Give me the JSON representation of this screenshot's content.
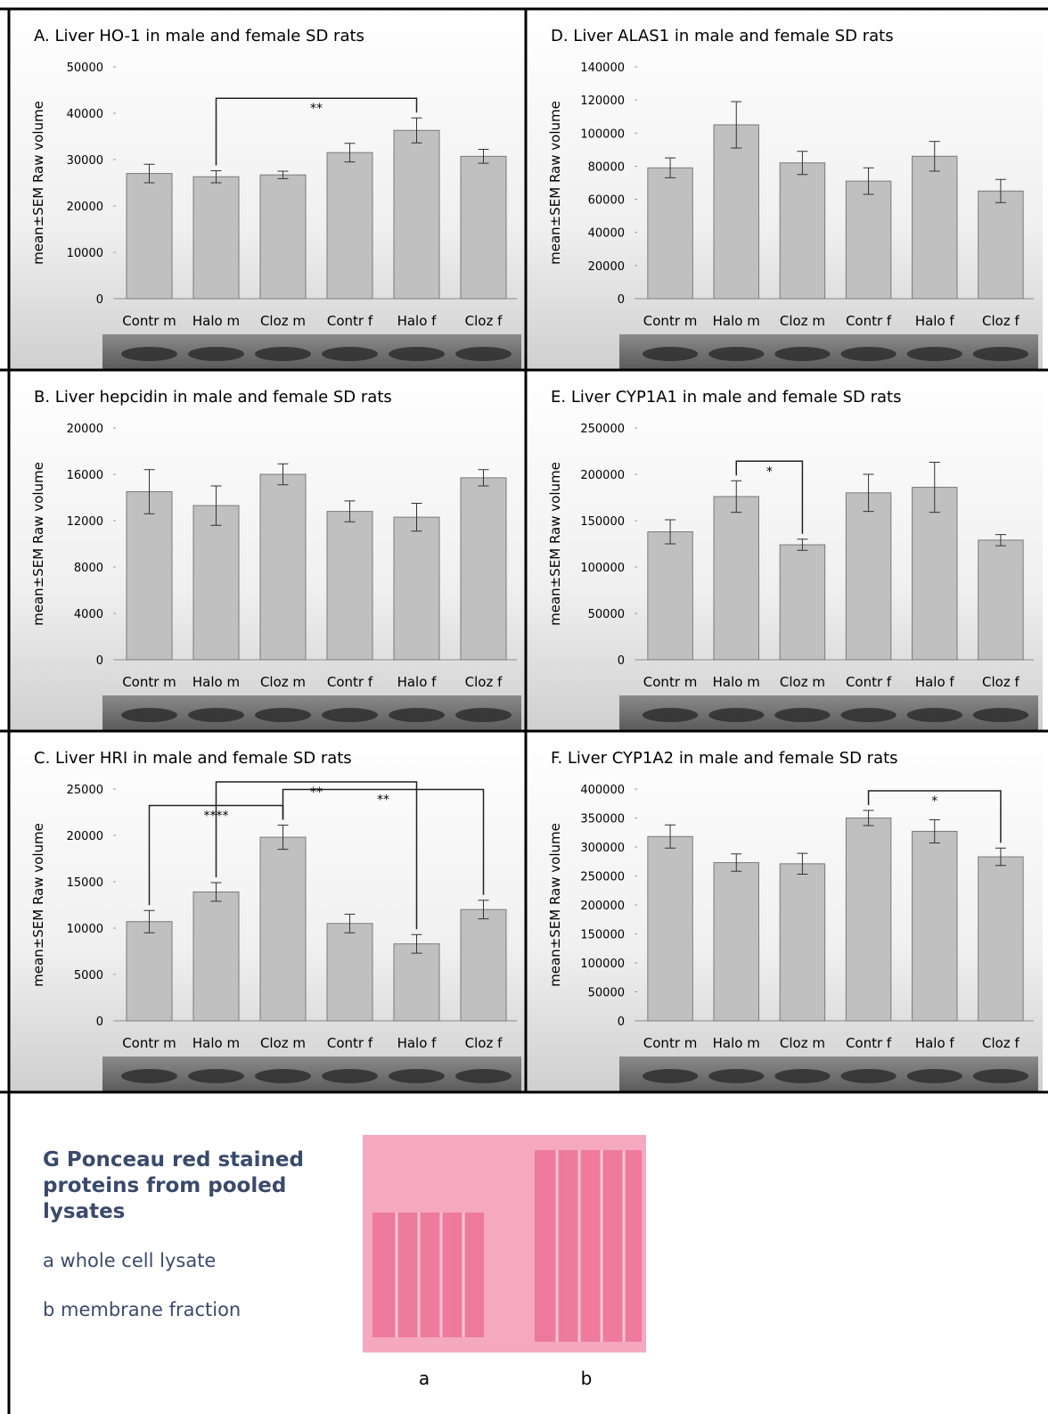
{
  "chart_data": [
    {
      "type": "bar",
      "title": "A. Liver HO-1 in male and female SD rats",
      "ylabel": "mean±SEM Raw volume",
      "categories": [
        "Contr m",
        "Halo m",
        "Cloz m",
        "Contr f",
        "Halo f",
        "Cloz f"
      ],
      "values": [
        27000,
        26300,
        26700,
        31500,
        36300,
        30700
      ],
      "errors": [
        2000,
        1300,
        800,
        2000,
        2700,
        1500
      ],
      "color": "#c0c0c0",
      "ylim": [
        0,
        50000
      ],
      "yticks": [
        0,
        10000,
        20000,
        30000,
        40000,
        50000
      ],
      "brackets": [
        {
          "pair": [
            1,
            4
          ],
          "label": "**"
        }
      ]
    },
    {
      "type": "bar",
      "title": "B. Liver hepcidin in male and female SD rats",
      "ylabel": "mean±SEM Raw volume",
      "categories": [
        "Contr m",
        "Halo m",
        "Cloz m",
        "Contr f",
        "Halo f",
        "Cloz f"
      ],
      "values": [
        14500,
        13300,
        16000,
        12800,
        12300,
        15700
      ],
      "errors": [
        1900,
        1700,
        900,
        900,
        1200,
        700
      ],
      "color": "#c0c0c0",
      "ylim": [
        0,
        20000
      ],
      "yticks": [
        0,
        4000,
        8000,
        12000,
        16000,
        20000
      ],
      "brackets": []
    },
    {
      "type": "bar",
      "title": "C. Liver HRI in male and female SD rats",
      "ylabel": "mean±SEM Raw volume",
      "categories": [
        "Contr m",
        "Halo m",
        "Cloz m",
        "Contr f",
        "Halo f",
        "Cloz f"
      ],
      "values": [
        10700,
        13900,
        19800,
        10500,
        8300,
        12000
      ],
      "errors": [
        1200,
        1000,
        1300,
        1000,
        1000,
        1000
      ],
      "color": "#c0c0c0",
      "ylim": [
        0,
        25000
      ],
      "yticks": [
        0,
        5000,
        10000,
        15000,
        20000,
        25000
      ],
      "brackets": [
        {
          "pair": [
            0,
            2
          ],
          "label": "****"
        },
        {
          "pair": [
            2,
            5
          ],
          "label": "**"
        },
        {
          "pair": [
            1,
            4
          ],
          "label": "**"
        }
      ]
    },
    {
      "type": "bar",
      "title": "D. Liver ALAS1 in male and female SD rats",
      "ylabel": "mean±SEM Raw volume",
      "categories": [
        "Contr m",
        "Halo m",
        "Cloz m",
        "Contr f",
        "Halo f",
        "Cloz f"
      ],
      "values": [
        79000,
        105000,
        82000,
        71000,
        86000,
        65000
      ],
      "errors": [
        6000,
        14000,
        7000,
        8000,
        9000,
        7000
      ],
      "color": "#c0c0c0",
      "ylim": [
        0,
        140000
      ],
      "yticks": [
        0,
        20000,
        40000,
        60000,
        80000,
        100000,
        120000,
        140000
      ],
      "brackets": []
    },
    {
      "type": "bar",
      "title": "E. Liver CYP1A1 in male and female SD rats",
      "ylabel": "mean±SEM Raw volume",
      "categories": [
        "Contr m",
        "Halo m",
        "Cloz m",
        "Contr f",
        "Halo f",
        "Cloz f"
      ],
      "values": [
        138000,
        176000,
        124000,
        180000,
        186000,
        129000
      ],
      "errors": [
        13000,
        17000,
        6000,
        20000,
        27000,
        6000
      ],
      "color": "#c0c0c0",
      "ylim": [
        0,
        250000
      ],
      "yticks": [
        0,
        50000,
        100000,
        150000,
        200000,
        250000
      ],
      "brackets": [
        {
          "pair": [
            1,
            2
          ],
          "label": "*"
        }
      ]
    },
    {
      "type": "bar",
      "title": "F. Liver CYP1A2 in male and female SD rats",
      "ylabel": "mean±SEM Raw volume",
      "categories": [
        "Contr m",
        "Halo m",
        "Cloz m",
        "Contr f",
        "Halo f",
        "Cloz f"
      ],
      "values": [
        318000,
        273000,
        271000,
        350000,
        327000,
        283000
      ],
      "errors": [
        20000,
        15000,
        18000,
        13000,
        20000,
        15000
      ],
      "color": "#c0c0c0",
      "ylim": [
        0,
        400000
      ],
      "yticks": [
        0,
        50000,
        100000,
        150000,
        200000,
        250000,
        300000,
        350000,
        400000
      ],
      "brackets": [
        {
          "pair": [
            3,
            5
          ],
          "label": "*"
        }
      ]
    }
  ],
  "panel_g": {
    "title": "G  Ponceau red stained proteins from pooled lysates",
    "items": [
      "a whole cell lysate",
      "b membrane fraction"
    ],
    "lane_labels": [
      "a",
      "b"
    ]
  }
}
